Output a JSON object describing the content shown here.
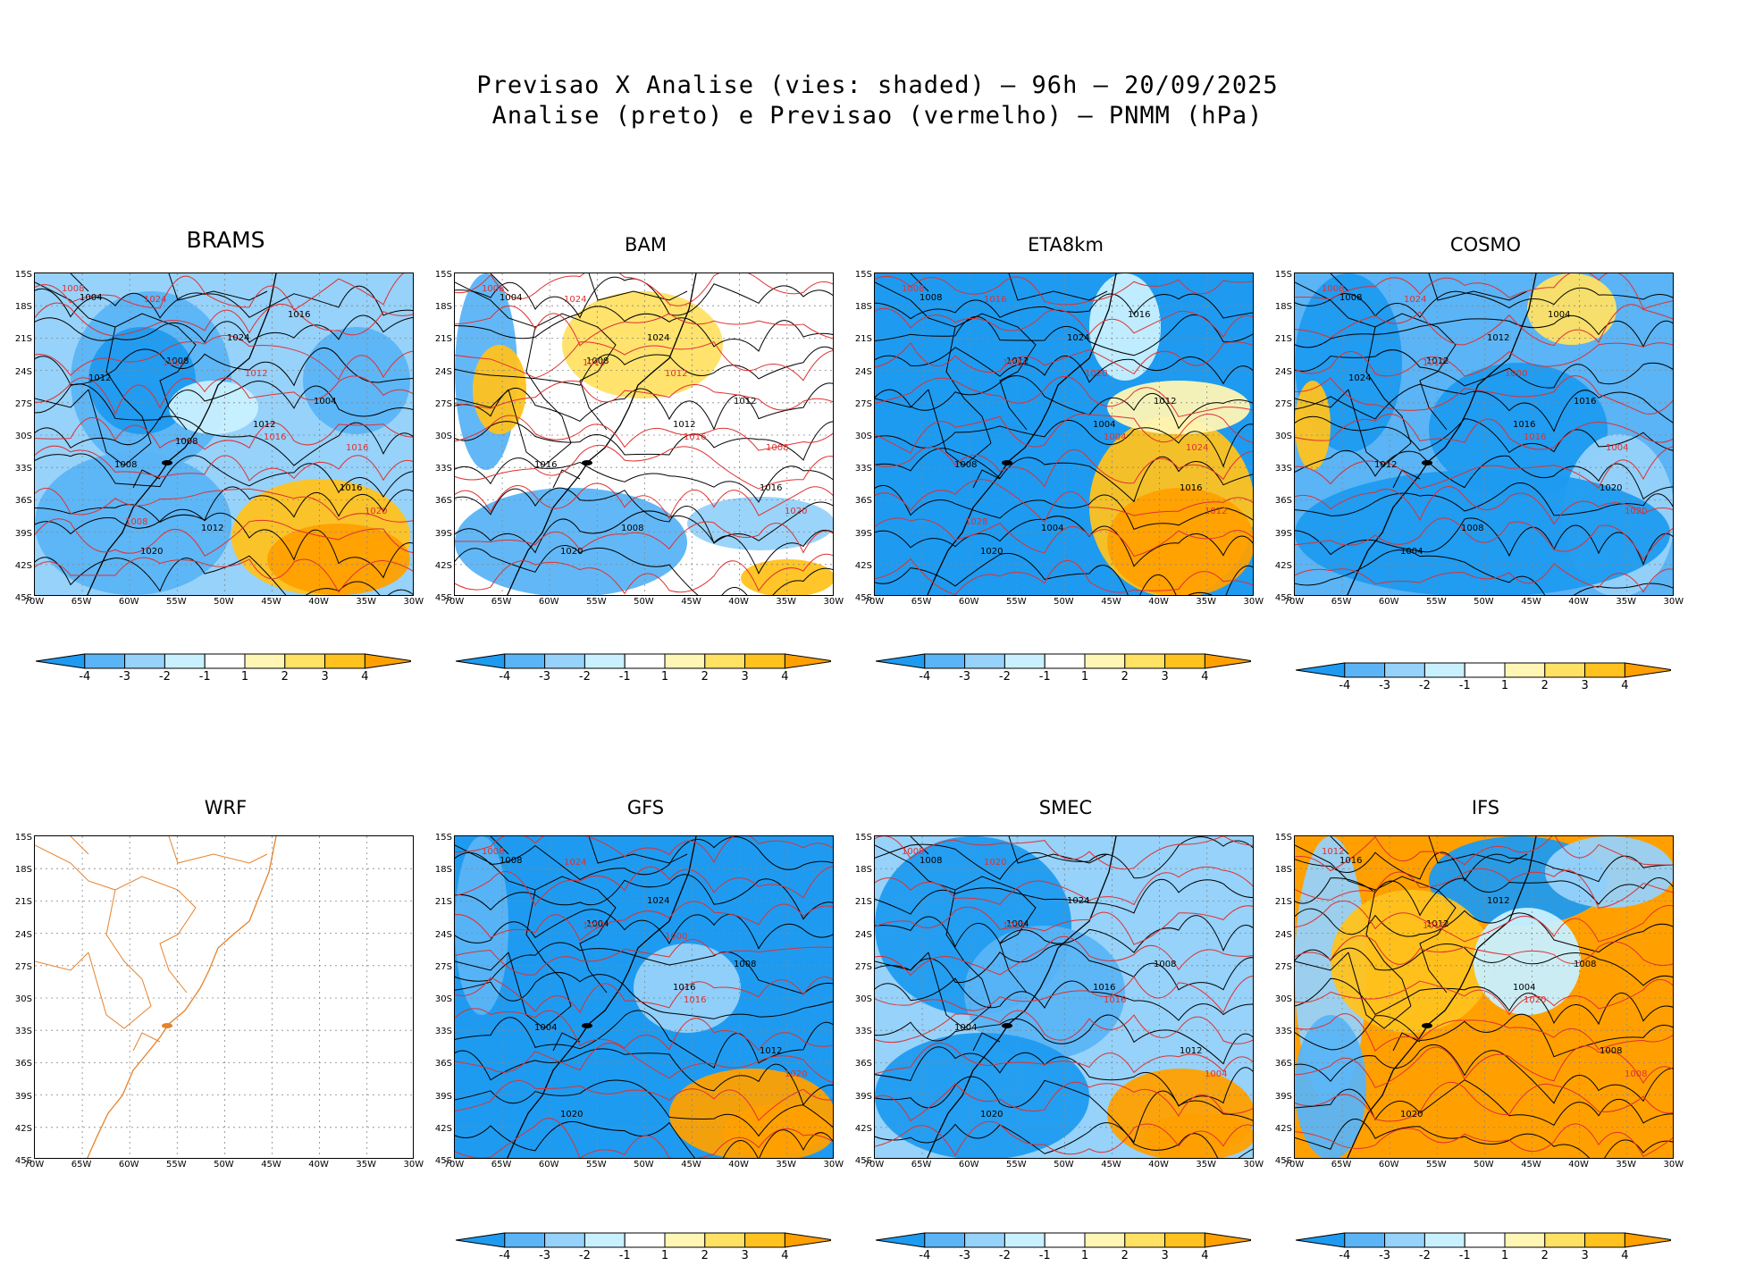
{
  "header": {
    "title_line1": "Previsao X Analise (vies: shaded) – 96h – 20/09/2025",
    "title_line2": "Analise (preto) e Previsao (vermelho) – PNMM (hPa)"
  },
  "axes": {
    "lat_labels": [
      "15S",
      "18S",
      "21S",
      "24S",
      "27S",
      "30S",
      "33S",
      "36S",
      "39S",
      "42S",
      "45S"
    ],
    "lon_labels": [
      "70W",
      "65W",
      "60W",
      "55W",
      "50W",
      "45W",
      "40W",
      "35W",
      "30W"
    ]
  },
  "colorbar": {
    "labels": [
      "-4",
      "-3",
      "-2",
      "-1",
      "1",
      "2",
      "3",
      "4"
    ],
    "colors": [
      "#1e9bf0",
      "#5ab4f5",
      "#96d2fa",
      "#c8f0ff",
      "#ffffff",
      "#fff5b4",
      "#ffe164",
      "#ffc21e",
      "#ffa000"
    ]
  },
  "colors": {
    "analysis_contour": "#000000",
    "forecast_contour": "#e03030",
    "coastline_wrf": "#e5822c"
  },
  "panels": [
    {
      "name": "BRAMS",
      "labels_black": [
        "1004",
        "1008",
        "1012",
        "1016",
        "1020",
        "1024",
        "1004",
        "1008",
        "1012",
        "1016",
        "1012",
        "1008"
      ],
      "labels_red": [
        "1008",
        "1012",
        "1016",
        "1020",
        "1024",
        "1012",
        "1016",
        "1008"
      ]
    },
    {
      "name": "BAM",
      "labels_black": [
        "1004",
        "1008",
        "1012",
        "1016",
        "1020",
        "1024",
        "1012",
        "1016",
        "1008"
      ],
      "labels_red": [
        "1008",
        "1012",
        "1016",
        "1020",
        "1024",
        "1012",
        "1008"
      ]
    },
    {
      "name": "ETA8km",
      "labels_black": [
        "1008",
        "1012",
        "1004",
        "1016",
        "1020",
        "1024",
        "1012",
        "1008",
        "1004",
        "1016"
      ],
      "labels_red": [
        "1008",
        "1000",
        "1004",
        "1012",
        "1016",
        "1020",
        "1024",
        "1028"
      ]
    },
    {
      "name": "COSMO",
      "labels_black": [
        "1008",
        "1012",
        "1016",
        "1020",
        "1004",
        "1012",
        "1016",
        "1012",
        "1008",
        "1004",
        "1024"
      ],
      "labels_red": [
        "1008",
        "1012",
        "1016",
        "1020",
        "1024",
        "1000",
        "1004"
      ]
    },
    {
      "name": "WRF",
      "labels_black": [],
      "labels_red": []
    },
    {
      "name": "GFS",
      "labels_black": [
        "1008",
        "1004",
        "1016",
        "1012",
        "1020",
        "1024",
        "1008",
        "1004"
      ],
      "labels_red": [
        "1008",
        "1012",
        "1016",
        "1020",
        "1024",
        "1000"
      ]
    },
    {
      "name": "SMEC",
      "labels_black": [
        "1008",
        "1004",
        "1016",
        "1012",
        "1020",
        "1024",
        "1008",
        "1004"
      ],
      "labels_red": [
        "1008",
        "1012",
        "1016",
        "1004",
        "1020"
      ]
    },
    {
      "name": "IFS",
      "labels_black": [
        "1016",
        "1012",
        "1004",
        "1008",
        "1020",
        "1012",
        "1008"
      ],
      "labels_red": [
        "1012",
        "1016",
        "1020",
        "1008"
      ]
    }
  ]
}
